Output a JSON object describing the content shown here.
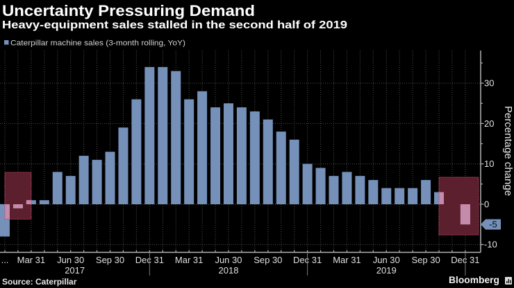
{
  "chart_data": {
    "type": "bar",
    "title": "Uncertainty Pressuring Demand",
    "subtitle": "Heavy-equipment sales stalled in the second half of 2019",
    "legend": [
      {
        "name": "Caterpillar machine sales (3-month rolling, YoY)",
        "color": "#7590b9"
      }
    ],
    "legend_position": "top-left",
    "xlabel": "",
    "ylabel": "Percentage change",
    "y_axis_side": "right",
    "ylim": [
      -11.8,
      38
    ],
    "yticks_major": [
      -10,
      0,
      10,
      20,
      30
    ],
    "yticks_minor": [
      -5,
      5,
      15,
      25,
      35
    ],
    "grid": true,
    "categories": [
      "Jan 2017",
      "Feb 2017",
      "Mar 2017",
      "Apr 2017",
      "May 2017",
      "Jun 2017",
      "Jul 2017",
      "Aug 2017",
      "Sep 2017",
      "Oct 2017",
      "Nov 2017",
      "Dec 2017",
      "Jan 2018",
      "Feb 2018",
      "Mar 2018",
      "Apr 2018",
      "May 2018",
      "Jun 2018",
      "Jul 2018",
      "Aug 2018",
      "Sep 2018",
      "Oct 2018",
      "Nov 2018",
      "Dec 2018",
      "Jan 2019",
      "Feb 2019",
      "Mar 2019",
      "Apr 2019",
      "May 2019",
      "Jun 2019",
      "Jul 2019",
      "Aug 2019",
      "Sep 2019",
      "Oct 2019",
      "Nov 2019",
      "Dec 2019"
    ],
    "series": [
      {
        "name": "Caterpillar machine sales (3-month rolling, YoY)",
        "color": "#7590b9",
        "values": [
          -8,
          -1,
          1,
          1,
          8,
          7,
          12,
          11,
          13,
          19,
          26,
          34,
          34,
          33,
          26,
          28,
          24,
          25,
          24,
          23,
          21,
          18,
          16,
          10,
          9,
          7,
          8,
          7,
          6,
          4,
          4,
          4,
          6,
          3,
          0,
          -5
        ]
      }
    ],
    "x_tick_labels": [
      {
        "category": "Jan 2017",
        "label": "..."
      },
      {
        "category": "Mar 2017",
        "label": "Mar 31"
      },
      {
        "category": "Jun 2017",
        "label": "Jun 30"
      },
      {
        "category": "Sep 2017",
        "label": "Sep 30"
      },
      {
        "category": "Dec 2017",
        "label": "Dec 31"
      },
      {
        "category": "Mar 2018",
        "label": "Mar 31"
      },
      {
        "category": "Jun 2018",
        "label": "Jun 30"
      },
      {
        "category": "Sep 2018",
        "label": "Sep 30"
      },
      {
        "category": "Dec 2018",
        "label": "Dec 31"
      },
      {
        "category": "Mar 2019",
        "label": "Mar 31"
      },
      {
        "category": "Jun 2019",
        "label": "Jun 30"
      },
      {
        "category": "Sep 2019",
        "label": "Sep 30"
      },
      {
        "category": "Dec 2019",
        "label": "Dec 31"
      }
    ],
    "year_labels": [
      {
        "label": "2017",
        "end": "Dec 2017"
      },
      {
        "label": "2018",
        "end": "Dec 2018"
      },
      {
        "label": "2019",
        "end": "Dec 2019"
      }
    ],
    "highlights": [
      {
        "from": "Jan 2017",
        "to": "Mar 2017",
        "y_max": 7.9,
        "y_min": -3.7,
        "color": "#c24a6c"
      },
      {
        "from": "Oct 2019",
        "to": "Jan 2020",
        "y_max": 6.7,
        "y_min": -7.6,
        "color": "#c24a6c"
      }
    ],
    "last_value_label": "-5",
    "last_value_color": "#7590b9"
  },
  "footer": {
    "source": "Source: Caterpillar",
    "brand": "Bloomberg",
    "brand_icon": "bloomberg-chart-icon"
  }
}
